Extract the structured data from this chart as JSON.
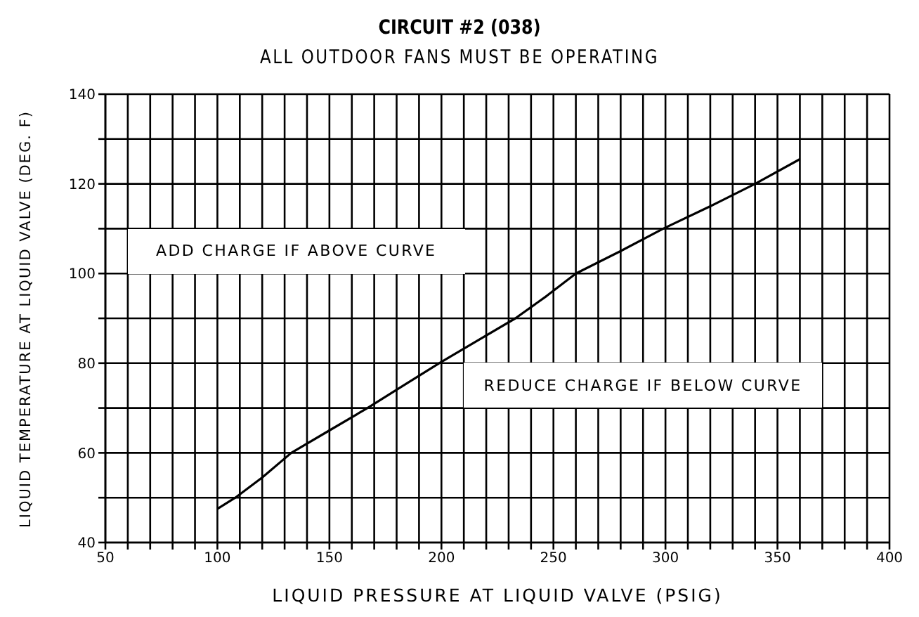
{
  "chart_data": {
    "type": "line",
    "title": "CIRCUIT #2 (038)",
    "subtitle": "ALL OUTDOOR FANS MUST BE OPERATING",
    "xlabel": "LIQUID PRESSURE AT LIQUID VALVE (PSIG)",
    "ylabel": "LIQUID TEMPERATURE AT LIQUID VALVE (DEG. F)",
    "annotations": [
      "ADD CHARGE IF ABOVE CURVE",
      "REDUCE CHARGE IF BELOW CURVE"
    ],
    "x": [
      100,
      108,
      120,
      133,
      150,
      167,
      183,
      199,
      216,
      233,
      247,
      260,
      280,
      299,
      320,
      340,
      360
    ],
    "series": [
      {
        "color": "#000000",
        "values": [
          47.5,
          50,
          54.5,
          60,
          65,
          70,
          75,
          80,
          85,
          90,
          95,
          100,
          105,
          110,
          115,
          120,
          125.5
        ]
      }
    ],
    "xlim": [
      50,
      400
    ],
    "xticks": [
      50,
      {
        "value": 60,
        "label": null
      },
      {
        "value": 70,
        "label": null
      },
      {
        "value": 80,
        "label": null
      },
      {
        "value": 90,
        "label": null
      },
      100,
      {
        "value": 110,
        "label": null
      },
      {
        "value": 120,
        "label": null
      },
      {
        "value": 130,
        "label": null
      },
      {
        "value": 140,
        "label": null
      },
      150,
      {
        "value": 160,
        "label": null
      },
      {
        "value": 170,
        "label": null
      },
      {
        "value": 180,
        "label": null
      },
      {
        "value": 190,
        "label": null
      },
      200,
      {
        "value": 210,
        "label": null
      },
      {
        "value": 220,
        "label": null
      },
      {
        "value": 230,
        "label": null
      },
      {
        "value": 240,
        "label": null
      },
      250,
      {
        "value": 260,
        "label": null
      },
      {
        "value": 270,
        "label": null
      },
      {
        "value": 280,
        "label": null
      },
      {
        "value": 290,
        "label": null
      },
      300,
      {
        "value": 310,
        "label": null
      },
      {
        "value": 320,
        "label": null
      },
      {
        "value": 330,
        "label": null
      },
      {
        "value": 340,
        "label": null
      },
      350,
      {
        "value": 360,
        "label": null
      },
      {
        "value": 370,
        "label": null
      },
      {
        "value": 380,
        "label": null
      },
      {
        "value": 390,
        "label": null
      },
      400
    ],
    "ylim": [
      40,
      140
    ],
    "yticks": [
      40,
      {
        "value": 50,
        "label": null
      },
      60,
      {
        "value": 70,
        "label": null
      },
      80,
      {
        "value": 90,
        "label": null
      },
      100,
      {
        "value": 110,
        "label": null
      },
      120,
      {
        "value": 130,
        "label": null
      },
      140
    ],
    "grid": true,
    "legend": false,
    "marker": "none",
    "line_style": "solid"
  }
}
